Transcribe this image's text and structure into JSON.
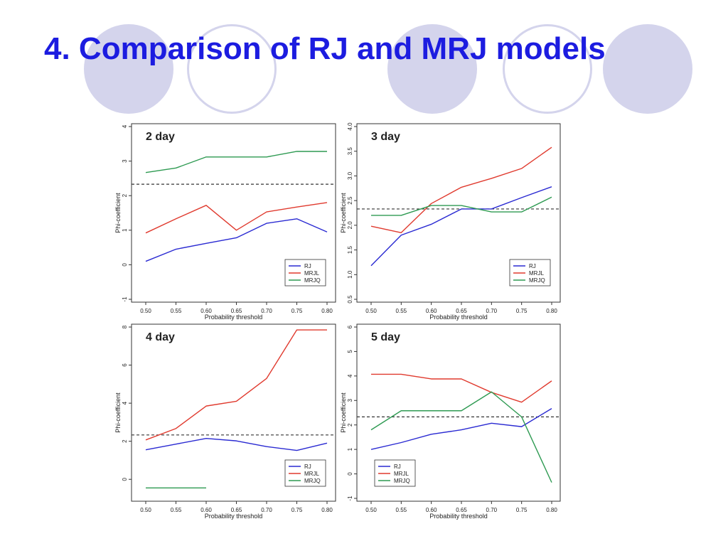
{
  "slide": {
    "title": "4. Comparison of RJ and MRJ models"
  },
  "colors": {
    "title": "#1c1ce0",
    "decor_circle": "#d4d4ec",
    "RJ": "#2a2ad2",
    "MRJL": "#e03a2e",
    "MRJQ": "#2e9a52",
    "threshold_line": "#333333"
  },
  "chart_data": [
    {
      "type": "line",
      "title": "2 day",
      "xlabel": "Probability threshold",
      "ylabel": "Phi-coefficient",
      "x": [
        0.5,
        0.55,
        0.6,
        0.65,
        0.7,
        0.75,
        0.8
      ],
      "x_tick_labels": [
        "0.50",
        "0.55",
        "0.60",
        "0.65",
        "0.70",
        "0.75",
        "0.80"
      ],
      "xlim": [
        0.5,
        0.8
      ],
      "ylim": [
        -1,
        4
      ],
      "y_ticks": [
        -1,
        0,
        1,
        2,
        3,
        4
      ],
      "y_tick_labels": [
        "-1",
        "0",
        "1",
        "2",
        "3",
        "4"
      ],
      "reference_line": 2.33,
      "legend_position": "bottom-right",
      "series": [
        {
          "name": "RJ",
          "color": "#2a2ad2",
          "values": [
            0.1,
            0.45,
            0.62,
            0.78,
            1.2,
            1.33,
            0.95
          ]
        },
        {
          "name": "MRJL",
          "color": "#e03a2e",
          "values": [
            0.92,
            1.33,
            1.72,
            1.0,
            1.53,
            1.67,
            1.8
          ]
        },
        {
          "name": "MRJQ",
          "color": "#2e9a52",
          "values": [
            2.67,
            2.8,
            3.12,
            3.12,
            3.12,
            3.28,
            3.28
          ]
        }
      ]
    },
    {
      "type": "line",
      "title": "3 day",
      "xlabel": "Probability threshold",
      "ylabel": "Phi-coefficient",
      "x": [
        0.5,
        0.55,
        0.6,
        0.65,
        0.7,
        0.75,
        0.8
      ],
      "x_tick_labels": [
        "0.50",
        "0.55",
        "0.60",
        "0.65",
        "0.70",
        "0.75",
        "0.80"
      ],
      "xlim": [
        0.5,
        0.8
      ],
      "ylim": [
        0.5,
        4.0
      ],
      "y_ticks": [
        0.5,
        1.0,
        1.5,
        2.0,
        2.5,
        3.0,
        3.5,
        4.0
      ],
      "y_tick_labels": [
        "0.5",
        "1.0",
        "1.5",
        "2.0",
        "2.5",
        "3.0",
        "3.5",
        "4.0"
      ],
      "reference_line": 2.33,
      "legend_position": "bottom-right",
      "series": [
        {
          "name": "RJ",
          "color": "#2a2ad2",
          "values": [
            1.18,
            1.8,
            2.02,
            2.33,
            2.33,
            2.56,
            2.78
          ]
        },
        {
          "name": "MRJL",
          "color": "#e03a2e",
          "values": [
            1.98,
            1.85,
            2.44,
            2.77,
            2.95,
            3.15,
            3.58
          ]
        },
        {
          "name": "MRJQ",
          "color": "#2e9a52",
          "values": [
            2.2,
            2.2,
            2.4,
            2.4,
            2.27,
            2.27,
            2.57
          ]
        }
      ]
    },
    {
      "type": "line",
      "title": "4 day",
      "xlabel": "Probability threshold",
      "ylabel": "Phi-coefficient",
      "x": [
        0.5,
        0.55,
        0.6,
        0.65,
        0.7,
        0.75,
        0.8
      ],
      "x_tick_labels": [
        "0.50",
        "0.55",
        "0.60",
        "0.65",
        "0.70",
        "0.75",
        "0.80"
      ],
      "xlim": [
        0.5,
        0.8
      ],
      "ylim": [
        -1,
        8
      ],
      "y_ticks": [
        0,
        2,
        4,
        6,
        8
      ],
      "y_tick_labels": [
        "0",
        "2",
        "4",
        "6",
        "8"
      ],
      "reference_line": 2.33,
      "legend_position": "bottom-right",
      "series": [
        {
          "name": "RJ",
          "color": "#2a2ad2",
          "values": [
            1.55,
            1.85,
            2.15,
            2.02,
            1.72,
            1.52,
            1.9
          ]
        },
        {
          "name": "MRJL",
          "color": "#e03a2e",
          "values": [
            2.07,
            2.67,
            3.85,
            4.1,
            5.3,
            7.85,
            7.85
          ]
        },
        {
          "name": "MRJQ",
          "color": "#2e9a52",
          "values": [
            -0.45,
            -0.45,
            -0.45,
            null,
            null,
            null,
            null
          ]
        }
      ]
    },
    {
      "type": "line",
      "title": "5 day",
      "xlabel": "Probability threshold",
      "ylabel": "Phi-coefficient",
      "x": [
        0.5,
        0.55,
        0.6,
        0.65,
        0.7,
        0.75,
        0.8
      ],
      "x_tick_labels": [
        "0.50",
        "0.55",
        "0.60",
        "0.65",
        "0.70",
        "0.75",
        "0.80"
      ],
      "xlim": [
        0.5,
        0.8
      ],
      "ylim": [
        -1,
        6
      ],
      "y_ticks": [
        -1,
        0,
        1,
        2,
        3,
        4,
        5,
        6
      ],
      "y_tick_labels": [
        "-1",
        "0",
        "1",
        "2",
        "3",
        "4",
        "5",
        "6"
      ],
      "reference_line": 2.33,
      "legend_position": "bottom-left",
      "series": [
        {
          "name": "RJ",
          "color": "#2a2ad2",
          "values": [
            1.0,
            1.28,
            1.62,
            1.8,
            2.07,
            1.93,
            2.67
          ]
        },
        {
          "name": "MRJL",
          "color": "#e03a2e",
          "values": [
            4.07,
            4.07,
            3.88,
            3.88,
            3.33,
            2.93,
            3.8
          ]
        },
        {
          "name": "MRJQ",
          "color": "#2e9a52",
          "values": [
            1.8,
            2.58,
            2.58,
            2.58,
            3.35,
            2.33,
            -0.35
          ]
        }
      ]
    }
  ]
}
